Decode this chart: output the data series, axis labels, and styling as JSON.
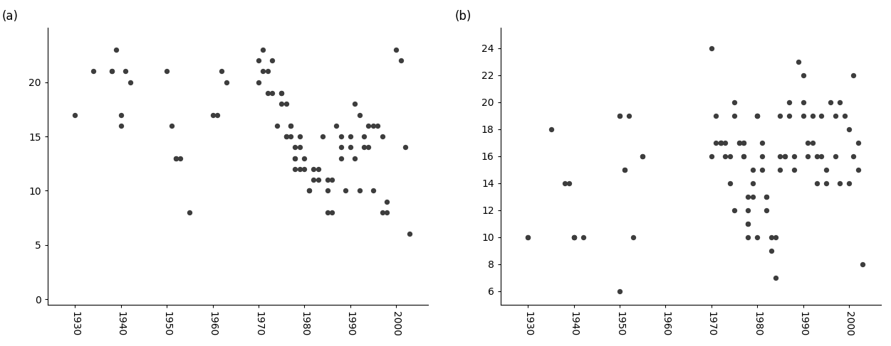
{
  "panel_a": {
    "label": "(a)",
    "x": [
      1930,
      1934,
      1938,
      1938,
      1939,
      1940,
      1940,
      1941,
      1942,
      1950,
      1951,
      1952,
      1952,
      1953,
      1955,
      1960,
      1961,
      1962,
      1963,
      1970,
      1970,
      1971,
      1971,
      1972,
      1972,
      1973,
      1973,
      1974,
      1975,
      1975,
      1975,
      1976,
      1976,
      1976,
      1977,
      1977,
      1977,
      1978,
      1978,
      1978,
      1978,
      1979,
      1979,
      1979,
      1980,
      1980,
      1981,
      1981,
      1982,
      1982,
      1983,
      1983,
      1984,
      1985,
      1985,
      1985,
      1986,
      1986,
      1987,
      1988,
      1988,
      1988,
      1989,
      1990,
      1990,
      1991,
      1991,
      1992,
      1992,
      1993,
      1993,
      1994,
      1994,
      1995,
      1995,
      1996,
      1997,
      1997,
      1998,
      1998,
      2000,
      2001,
      2002,
      2003
    ],
    "y": [
      17,
      21,
      21,
      21,
      23,
      17,
      16,
      21,
      20,
      21,
      16,
      13,
      13,
      13,
      8,
      17,
      17,
      21,
      20,
      22,
      20,
      23,
      21,
      21,
      19,
      19,
      22,
      16,
      19,
      19,
      18,
      15,
      18,
      15,
      16,
      16,
      15,
      14,
      13,
      13,
      12,
      15,
      14,
      12,
      13,
      12,
      10,
      10,
      12,
      11,
      12,
      11,
      15,
      11,
      10,
      8,
      11,
      8,
      16,
      15,
      14,
      13,
      10,
      15,
      14,
      13,
      18,
      10,
      17,
      15,
      14,
      16,
      14,
      10,
      16,
      16,
      8,
      15,
      9,
      8,
      23,
      22,
      14,
      6
    ],
    "ylim": [
      -0.5,
      25
    ],
    "yticks": [
      0,
      5,
      10,
      15,
      20
    ],
    "xlim": [
      1924,
      2007
    ],
    "xticks": [
      1930,
      1940,
      1950,
      1960,
      1970,
      1980,
      1990,
      2000
    ]
  },
  "panel_b": {
    "label": "(b)",
    "x": [
      1930,
      1930,
      1935,
      1938,
      1939,
      1940,
      1940,
      1940,
      1942,
      1950,
      1950,
      1950,
      1951,
      1951,
      1952,
      1953,
      1955,
      1955,
      1970,
      1970,
      1971,
      1971,
      1972,
      1972,
      1972,
      1973,
      1973,
      1974,
      1974,
      1975,
      1975,
      1975,
      1976,
      1976,
      1977,
      1977,
      1977,
      1977,
      1978,
      1978,
      1978,
      1978,
      1978,
      1979,
      1979,
      1979,
      1980,
      1980,
      1980,
      1980,
      1981,
      1981,
      1981,
      1982,
      1982,
      1982,
      1983,
      1983,
      1984,
      1984,
      1985,
      1985,
      1985,
      1986,
      1986,
      1987,
      1987,
      1988,
      1988,
      1989,
      1990,
      1990,
      1990,
      1991,
      1991,
      1992,
      1992,
      1993,
      1993,
      1994,
      1994,
      1995,
      1995,
      1996,
      1997,
      1997,
      1998,
      1998,
      1999,
      2000,
      2000,
      2001,
      2001,
      2002,
      2002,
      2003
    ],
    "y": [
      10,
      10,
      18,
      14,
      14,
      10,
      10,
      10,
      10,
      19,
      19,
      6,
      15,
      15,
      19,
      10,
      16,
      16,
      24,
      16,
      19,
      17,
      17,
      17,
      17,
      17,
      16,
      16,
      14,
      20,
      19,
      12,
      17,
      17,
      17,
      17,
      16,
      16,
      13,
      12,
      11,
      11,
      10,
      15,
      14,
      13,
      19,
      19,
      19,
      10,
      17,
      16,
      15,
      13,
      13,
      12,
      10,
      9,
      10,
      7,
      19,
      16,
      15,
      16,
      16,
      20,
      19,
      16,
      15,
      23,
      22,
      20,
      19,
      17,
      16,
      19,
      17,
      16,
      14,
      19,
      16,
      15,
      14,
      20,
      19,
      16,
      20,
      14,
      19,
      14,
      18,
      22,
      16,
      17,
      15,
      8
    ],
    "ylim": [
      5,
      25.5
    ],
    "yticks": [
      6,
      8,
      10,
      12,
      14,
      16,
      18,
      20,
      22,
      24
    ],
    "xlim": [
      1924,
      2007
    ],
    "xticks": [
      1930,
      1940,
      1950,
      1960,
      1970,
      1980,
      1990,
      2000
    ]
  },
  "dot_color": "#3d3d3d",
  "dot_size": 28,
  "bg_color": "#ffffff",
  "tick_label_rotation": -90,
  "tick_fontsize": 10,
  "label_fontsize": 12
}
